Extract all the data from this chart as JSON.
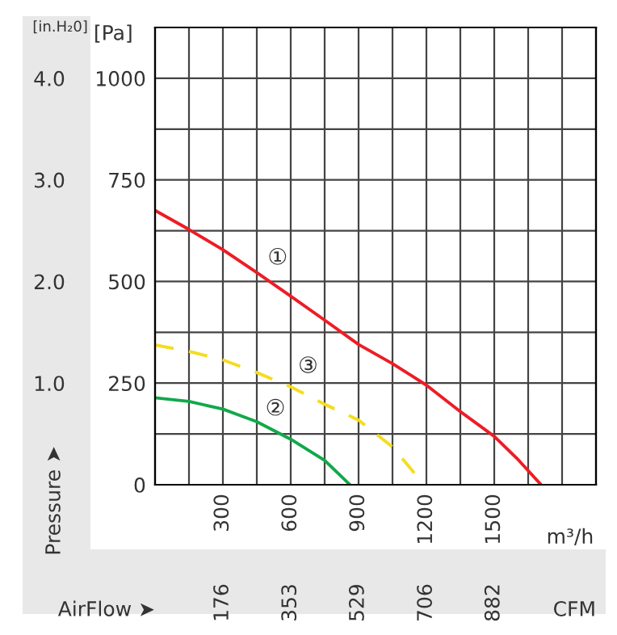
{
  "chart_data": {
    "type": "line",
    "xlabel": "m³/h",
    "x2label": "CFM",
    "ylabel": "[Pa]",
    "y2label": "[in.H₂0]",
    "annotations": [
      "Pressure ➤",
      "AirFlow ➤",
      "①",
      "②",
      "③"
    ],
    "series": [
      {
        "color": "#ee1c25",
        "line_style": "solid",
        "x": [
          0,
          150,
          300,
          450,
          600,
          750,
          900,
          1050,
          1200,
          1350,
          1500,
          1600,
          1707
        ],
        "values": [
          675,
          628,
          578,
          522,
          464,
          405,
          345,
          298,
          245,
          180,
          119,
          65,
          0
        ]
      },
      {
        "color": "#12a84a",
        "line_style": "solid",
        "x": [
          0,
          150,
          300,
          450,
          600,
          750,
          862
        ],
        "values": [
          214,
          205,
          186,
          155,
          112,
          60,
          0
        ]
      },
      {
        "color": "#f5dc1e",
        "line_style": "dashed",
        "x": [
          0,
          150,
          300,
          450,
          600,
          750,
          900,
          1050,
          1160
        ],
        "values": [
          344,
          328,
          307,
          276,
          241,
          198,
          159,
          93,
          20
        ]
      }
    ],
    "xlim": [
      0,
      1950
    ],
    "xticks": [
      {
        "value": 150,
        "label": null
      },
      300,
      {
        "value": 450,
        "label": null
      },
      600,
      {
        "value": 750,
        "label": null
      },
      900,
      {
        "value": 1050,
        "label": null
      },
      1200,
      {
        "value": 1350,
        "label": null
      },
      1500,
      {
        "value": 1650,
        "label": null
      },
      {
        "value": 1800,
        "label": null
      }
    ],
    "x2lim": [
      0,
      1148
    ],
    "x2ticks": [
      176,
      353,
      529,
      706,
      882
    ],
    "ylim": [
      0,
      1125
    ],
    "yticks": [
      0,
      {
        "value": 125,
        "label": null
      },
      250,
      {
        "value": 375,
        "label": null
      },
      500,
      {
        "value": 625,
        "label": null
      },
      750,
      {
        "value": 875,
        "label": null
      },
      1000
    ],
    "y2lim": [
      0,
      4.5
    ],
    "y2ticks": [
      {
        "value": 1.0,
        "label": "1.0"
      },
      {
        "value": 2.0,
        "label": "2.0"
      },
      {
        "value": 3.0,
        "label": "3.0"
      },
      {
        "value": 4.0,
        "label": "4.0"
      }
    ],
    "grid": true
  }
}
